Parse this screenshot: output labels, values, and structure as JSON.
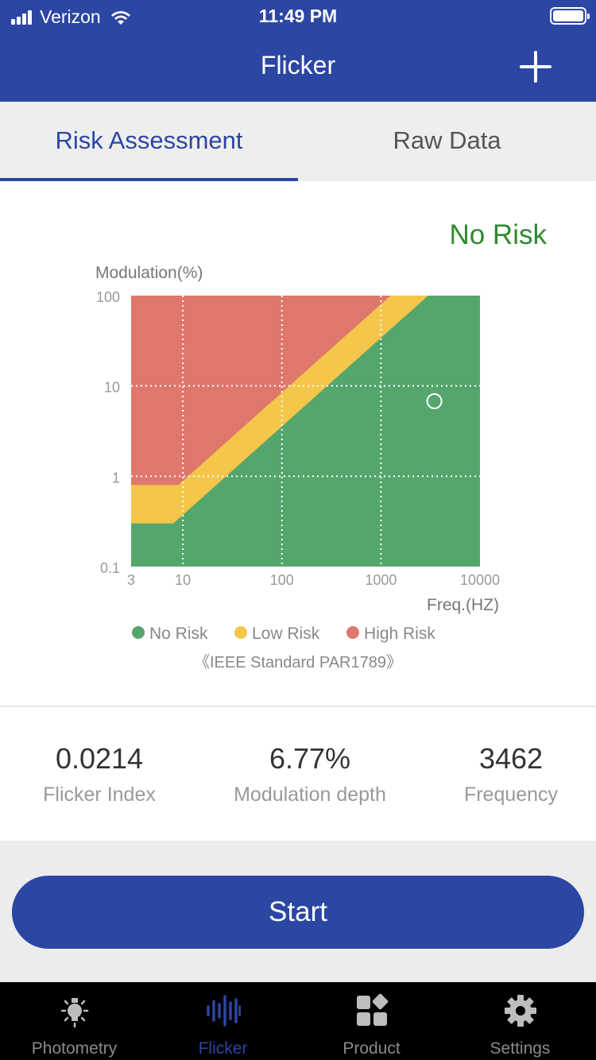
{
  "status_bar": {
    "carrier": "Verizon",
    "time": "11:49 PM"
  },
  "nav": {
    "title": "Flicker"
  },
  "tabs": [
    {
      "label": "Risk Assessment",
      "active": true
    },
    {
      "label": "Raw Data",
      "active": false
    }
  ],
  "risk_status": "No Risk",
  "chart_data": {
    "type": "area",
    "ylabel": "Modulation(%)",
    "xlabel": "Freq.(HZ)",
    "x_scale": "log",
    "y_scale": "log",
    "xlim": [
      3,
      10000
    ],
    "ylim": [
      0.1,
      100
    ],
    "x_ticks": [
      "3",
      "10",
      "100",
      "1000",
      "10000"
    ],
    "y_ticks": [
      "100",
      "10",
      "1",
      "0.1"
    ],
    "grid": true,
    "regions": [
      {
        "name": "No Risk",
        "color": "#55a66d",
        "boundary": [
          [
            3,
            0.3
          ],
          [
            8,
            0.3
          ],
          [
            3000,
            100
          ]
        ]
      },
      {
        "name": "Low Risk",
        "color": "#f4c64a",
        "boundary": [
          [
            3,
            0.8
          ],
          [
            9,
            0.8
          ],
          [
            1250,
            100
          ]
        ]
      },
      {
        "name": "High Risk",
        "color": "#e0776c"
      }
    ],
    "measurement": {
      "x": 3462,
      "y": 6.77
    },
    "legend": [
      "No Risk",
      "Low Risk",
      "High Risk"
    ],
    "legend_colors": [
      "#55a66d",
      "#f4c64a",
      "#e0776c"
    ],
    "legend_position": "bottom",
    "footnote": "《IEEE Standard PAR1789》"
  },
  "metrics": [
    {
      "value": "0.0214",
      "label": "Flicker Index"
    },
    {
      "value": "6.77%",
      "label": "Modulation depth"
    },
    {
      "value": "3462",
      "label": "Frequency"
    }
  ],
  "start_label": "Start",
  "tab_bar": [
    {
      "label": "Photometry",
      "icon": "lightbulb-icon",
      "active": false
    },
    {
      "label": "Flicker",
      "icon": "waveform-icon",
      "active": true
    },
    {
      "label": "Product",
      "icon": "grid-icon",
      "active": false
    },
    {
      "label": "Settings",
      "icon": "gear-icon",
      "active": false
    }
  ],
  "colors": {
    "primary": "#2b46a3",
    "no_risk": "#55a66d",
    "low_risk": "#f4c64a",
    "high_risk": "#e0776c",
    "status_text": "#2f8a2f"
  }
}
